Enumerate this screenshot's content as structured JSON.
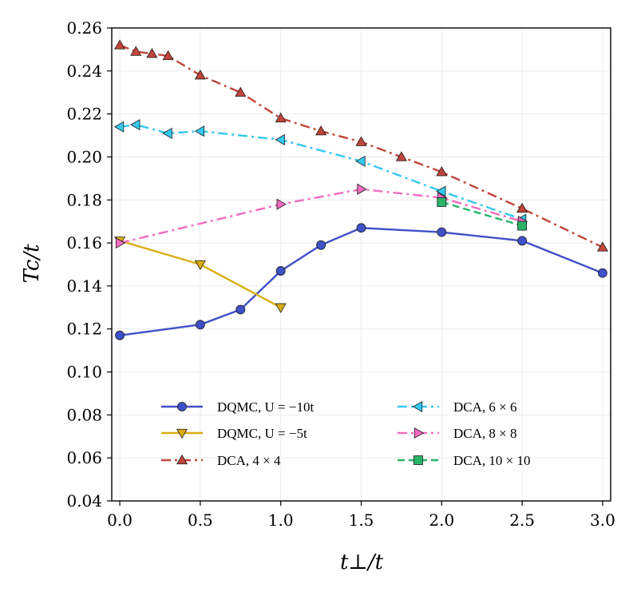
{
  "chart_data": {
    "type": "line",
    "xlabel": "t⊥/t",
    "ylabel": "Tc/t",
    "xlim": [
      -0.05,
      3.05
    ],
    "ylim": [
      0.04,
      0.26
    ],
    "xticks": [
      0.0,
      0.5,
      1.0,
      1.5,
      2.0,
      2.5,
      3.0
    ],
    "xtick_labels": [
      "0.0",
      "0.5",
      "1.0",
      "1.5",
      "2.0",
      "2.5",
      "3.0"
    ],
    "yticks": [
      0.04,
      0.06,
      0.08,
      0.1,
      0.12,
      0.14,
      0.16,
      0.18,
      0.2,
      0.22,
      0.24,
      0.26
    ],
    "ytick_labels": [
      "0.04",
      "0.06",
      "0.08",
      "0.10",
      "0.12",
      "0.14",
      "0.16",
      "0.18",
      "0.20",
      "0.22",
      "0.24",
      "0.26"
    ],
    "grid": true,
    "legend": {
      "placement": "lower-center",
      "columns": 2
    },
    "series": [
      {
        "name": "DQMC, U = −10t",
        "color": "#3f51c8",
        "dash": "solid",
        "marker": "circle",
        "x": [
          0.0,
          0.5,
          0.75,
          1.0,
          1.25,
          1.5,
          2.0,
          2.5,
          3.0
        ],
        "y": [
          0.117,
          0.122,
          0.129,
          0.147,
          0.159,
          0.167,
          0.165,
          0.161,
          0.146
        ]
      },
      {
        "name": "DQMC, U = −5t",
        "color": "#d9ae14",
        "dash": "solid",
        "marker": "triangle-down",
        "x": [
          0.0,
          0.5,
          1.0
        ],
        "y": [
          0.161,
          0.15,
          0.13
        ]
      },
      {
        "name": "DCA, 4 × 4",
        "color": "#c0453a",
        "dash": "dashdot",
        "marker": "triangle-up",
        "x": [
          0.0,
          0.1,
          0.2,
          0.3,
          0.5,
          0.75,
          1.0,
          1.25,
          1.5,
          1.75,
          2.0,
          2.5,
          3.0
        ],
        "y": [
          0.252,
          0.249,
          0.248,
          0.247,
          0.238,
          0.23,
          0.218,
          0.212,
          0.207,
          0.2,
          0.193,
          0.176,
          0.158
        ]
      },
      {
        "name": "DCA, 6 × 6",
        "color": "#35c8f0",
        "dash": "dashdot",
        "marker": "triangle-left",
        "x": [
          0.0,
          0.1,
          0.3,
          0.5,
          1.0,
          1.5,
          2.0,
          2.5
        ],
        "y": [
          0.214,
          0.215,
          0.211,
          0.212,
          0.208,
          0.198,
          0.184,
          0.171
        ]
      },
      {
        "name": "DCA, 8 × 8",
        "color": "#f26cbf",
        "dash": "dashdot",
        "marker": "triangle-right",
        "x": [
          0.0,
          1.0,
          1.5,
          2.0,
          2.5
        ],
        "y": [
          0.16,
          0.178,
          0.185,
          0.181,
          0.17
        ]
      },
      {
        "name": "DCA, 10 × 10",
        "color": "#2ab36b",
        "dash": "dashed",
        "marker": "square",
        "x": [
          2.0,
          2.5
        ],
        "y": [
          0.179,
          0.168
        ]
      }
    ]
  }
}
